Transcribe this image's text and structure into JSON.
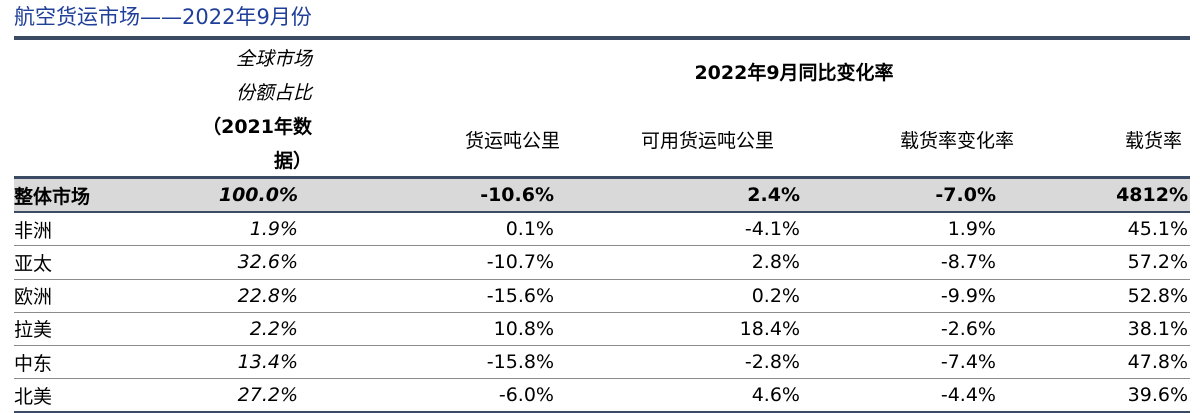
{
  "title": "航空货运市场——2022年9月份",
  "header": {
    "share_line1": "全球市场",
    "share_line2": "份额占比",
    "share_line3": "（2021年数",
    "share_line4": "据）",
    "group_label": "2022年9月同比变化率",
    "columns": [
      "货运吨公里",
      "可用货运吨公里",
      "载货率变化率",
      "载货率"
    ]
  },
  "rows": [
    {
      "region": "整体市场",
      "share": "100.0%",
      "ctk": "-10.6%",
      "actk": "2.4%",
      "lf_change": "-7.0%",
      "lf": "4812%"
    },
    {
      "region": "非洲",
      "share": "1.9%",
      "ctk": "0.1%",
      "actk": "-4.1%",
      "lf_change": "1.9%",
      "lf": "45.1%"
    },
    {
      "region": "亚太",
      "share": "32.6%",
      "ctk": "-10.7%",
      "actk": "2.8%",
      "lf_change": "-8.7%",
      "lf": "57.2%"
    },
    {
      "region": "欧洲",
      "share": "22.8%",
      "ctk": "-15.6%",
      "actk": "0.2%",
      "lf_change": "-9.9%",
      "lf": "52.8%"
    },
    {
      "region": "拉美",
      "share": "2.2%",
      "ctk": "10.8%",
      "actk": "18.4%",
      "lf_change": "-2.6%",
      "lf": "38.1%"
    },
    {
      "region": "中东",
      "share": "13.4%",
      "ctk": "-15.8%",
      "actk": "-2.8%",
      "lf_change": "-7.4%",
      "lf": "47.8%"
    },
    {
      "region": "北美",
      "share": "27.2%",
      "ctk": "-6.0%",
      "actk": "4.6%",
      "lf_change": "-4.4%",
      "lf": "39.6%"
    }
  ],
  "colors": {
    "title": "#1f3f99",
    "rule": "#3b4b63",
    "total_row_bg": "#d9d9d9",
    "grid": "#8c8c8c"
  }
}
